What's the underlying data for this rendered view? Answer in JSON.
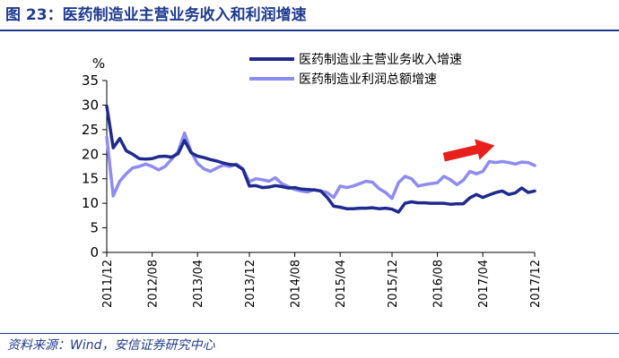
{
  "figure_title": "图 23：医药制造业主营业务收入和利润增速",
  "source_text": "资料来源：Wind，安信证券研究中心",
  "chart_data": {
    "type": "line",
    "title": "",
    "ylabel": "%",
    "ylim": [
      0,
      35
    ],
    "yticks": [
      0,
      5,
      10,
      15,
      20,
      25,
      30,
      35
    ],
    "xlabels": [
      "2011/12",
      "2012/08",
      "2013/04",
      "2013/12",
      "2014/08",
      "2015/04",
      "2015/12",
      "2016/08",
      "2017/04",
      "2017/12"
    ],
    "x": [
      "2011/12",
      "2012/02",
      "2012/03",
      "2012/04",
      "2012/05",
      "2012/06",
      "2012/07",
      "2012/08",
      "2012/09",
      "2012/10",
      "2012/11",
      "2012/12",
      "2013/02",
      "2013/03",
      "2013/04",
      "2013/05",
      "2013/06",
      "2013/07",
      "2013/08",
      "2013/09",
      "2013/10",
      "2013/11",
      "2013/12",
      "2014/02",
      "2014/03",
      "2014/04",
      "2014/05",
      "2014/06",
      "2014/07",
      "2014/08",
      "2014/09",
      "2014/10",
      "2014/11",
      "2014/12",
      "2015/02",
      "2015/03",
      "2015/04",
      "2015/05",
      "2015/06",
      "2015/07",
      "2015/08",
      "2015/09",
      "2015/10",
      "2015/11",
      "2015/12",
      "2016/02",
      "2016/03",
      "2016/04",
      "2016/05",
      "2016/06",
      "2016/07",
      "2016/08",
      "2016/09",
      "2016/10",
      "2016/11",
      "2016/12",
      "2017/02",
      "2017/03",
      "2017/04",
      "2017/05",
      "2017/06",
      "2017/07",
      "2017/08",
      "2017/09",
      "2017/10",
      "2017/11",
      "2017/12"
    ],
    "series": [
      {
        "name": "医药制造业主营业务收入增速",
        "color": "#1f2a8f",
        "values": [
          29.8,
          21.3,
          23.2,
          20.7,
          20.0,
          19.1,
          19.0,
          19.1,
          19.5,
          19.6,
          19.4,
          20.1,
          22.8,
          20.3,
          19.6,
          19.3,
          18.9,
          18.6,
          18.2,
          17.9,
          17.8,
          16.9,
          13.5,
          13.6,
          13.2,
          13.3,
          13.6,
          13.4,
          13.1,
          13.2,
          12.9,
          12.8,
          12.7,
          12.5,
          11.2,
          9.4,
          9.2,
          8.9,
          8.9,
          9.0,
          9.0,
          9.1,
          8.9,
          9.0,
          8.8,
          8.2,
          10.0,
          10.3,
          10.1,
          10.1,
          10.0,
          10.0,
          10.0,
          9.8,
          9.9,
          9.9,
          11.1,
          11.8,
          11.2,
          11.7,
          12.2,
          12.5,
          11.8,
          12.1,
          13.1,
          12.2,
          12.5
        ]
      },
      {
        "name": "医药制造业利润总额增速",
        "color": "#8c8cf2",
        "values": [
          23.5,
          11.5,
          14.5,
          16.0,
          17.2,
          17.5,
          18.0,
          17.5,
          16.8,
          17.5,
          19.0,
          20.5,
          24.3,
          20.5,
          18.1,
          17.0,
          16.5,
          17.2,
          17.8,
          17.5,
          18.0,
          17.0,
          14.4,
          15.0,
          14.8,
          14.5,
          15.2,
          14.0,
          13.4,
          12.8,
          12.5,
          12.3,
          12.8,
          12.5,
          12.2,
          11.2,
          13.5,
          13.2,
          13.5,
          14.0,
          14.5,
          14.3,
          13.0,
          12.2,
          11.0,
          14.2,
          15.5,
          15.0,
          13.5,
          13.8,
          14.0,
          14.2,
          15.5,
          14.8,
          13.8,
          14.7,
          16.5,
          16.0,
          16.5,
          18.5,
          18.3,
          18.5,
          18.3,
          18.0,
          18.4,
          18.3,
          17.7
        ]
      }
    ],
    "legend_position": "top-right",
    "grid": false,
    "annotations": [
      {
        "type": "arrow",
        "color": "#e8201c",
        "direction": "up-right"
      }
    ]
  }
}
